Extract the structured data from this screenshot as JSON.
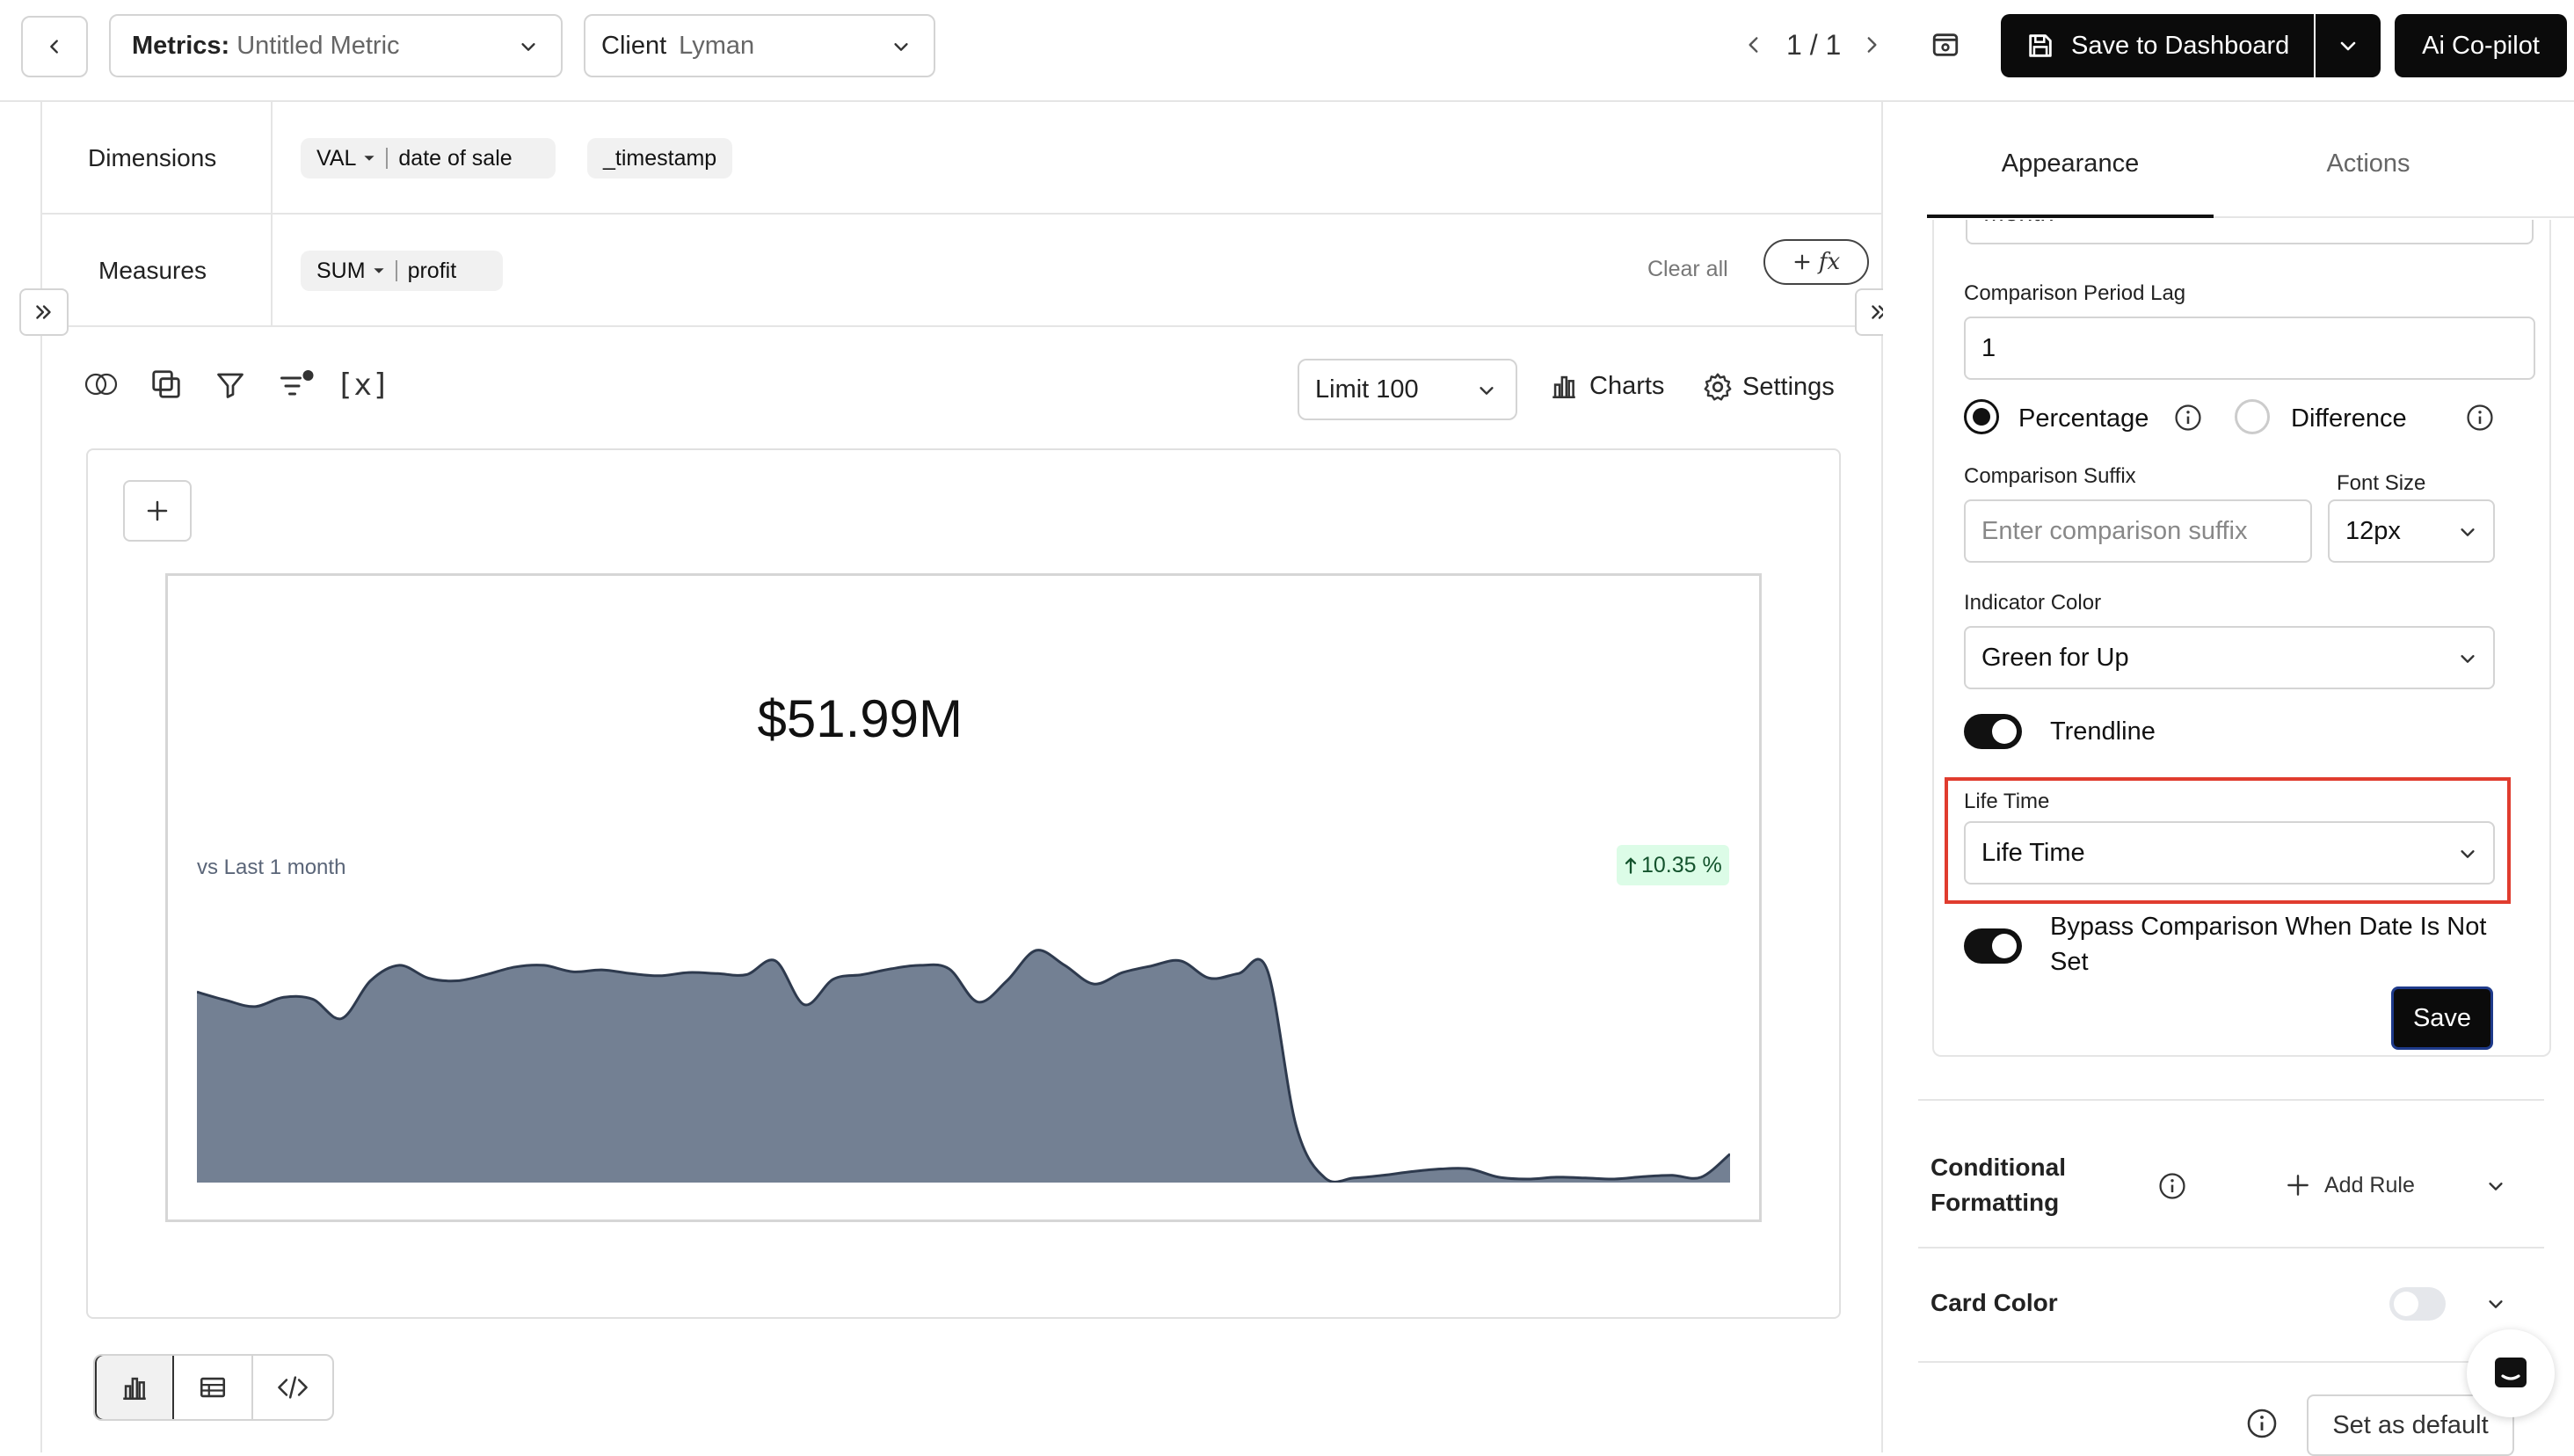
{
  "topbar": {
    "metrics_label": "Metrics:",
    "metrics_value": "Untitled Metric",
    "client_label": "Client",
    "client_value": "Lyman",
    "pagination": "1 / 1",
    "save_dashboard": "Save to Dashboard",
    "copilot": "Ai Co-pilot"
  },
  "query": {
    "dimensions_label": "Dimensions",
    "dimension_pill": {
      "func": "VAL",
      "field": "date of sale"
    },
    "dimension_pill2": "_timestamp",
    "measures_label": "Measures",
    "measure_pill": {
      "func": "SUM",
      "field": "profit"
    },
    "clear_all": "Clear all",
    "formula_icon": "fx"
  },
  "toolbar": {
    "variables": "[x]",
    "limit": "Limit 100",
    "charts": "Charts",
    "settings": "Settings"
  },
  "metric_card": {
    "value": "$51.99M",
    "comparison_label": "vs Last 1 month",
    "change_badge": "10.35 %",
    "fill_color": "#738093",
    "line_color": "#2e3a4e",
    "badge_bg": "#dcfce7"
  },
  "chart_data": {
    "type": "area",
    "title": "",
    "xlabel": "",
    "ylabel": "",
    "series": [
      {
        "values": [
          70.3,
          67.2,
          64.8,
          68.3,
          67.6,
          60.3,
          74.5,
          80.3,
          75.5,
          74.5,
          76.8,
          79.7,
          80.3,
          77.9,
          78.6,
          77.2,
          76.4,
          77.6,
          77.2,
          76.8,
          82.0,
          65.5,
          75.1,
          76.8,
          79.0,
          80.3,
          79.0,
          66.5,
          74.5,
          85.9,
          80.3,
          73.3,
          77.6,
          80.1,
          82.0,
          75.5,
          77.2,
          78.6,
          20.0,
          0.4,
          0.4,
          1.4,
          2.8,
          3.8,
          3.8,
          0.7,
          0.0,
          0.7,
          0.4,
          0.0,
          0.9,
          1.4,
          0.7,
          9.4
        ]
      }
    ]
  },
  "view_tabs": [
    "chart",
    "table",
    "code"
  ],
  "panel": {
    "tabs": [
      "Appearance",
      "Actions"
    ],
    "partial_field": "Month",
    "lag_label": "Comparison Period Lag",
    "lag_value": "1",
    "radio_percentage": "Percentage",
    "radio_difference": "Difference",
    "suffix_label": "Comparison Suffix",
    "suffix_placeholder": "Enter comparison suffix",
    "font_size_label": "Font Size",
    "font_size_value": "12px",
    "indicator_label": "Indicator Color",
    "indicator_value": "Green for Up",
    "trendline_label": "Trendline",
    "lifetime_label": "Life Time",
    "lifetime_value": "Life Time",
    "bypass_label_1": "Bypass Comparison When Date Is Not",
    "bypass_label_2": "Set",
    "save": "Save",
    "cond_label_1": "Conditional",
    "cond_label_2": "Formatting",
    "add_rule": "Add Rule",
    "card_color": "Card Color",
    "set_default": "Set as default",
    "highlight_color": "#e03c2e"
  }
}
